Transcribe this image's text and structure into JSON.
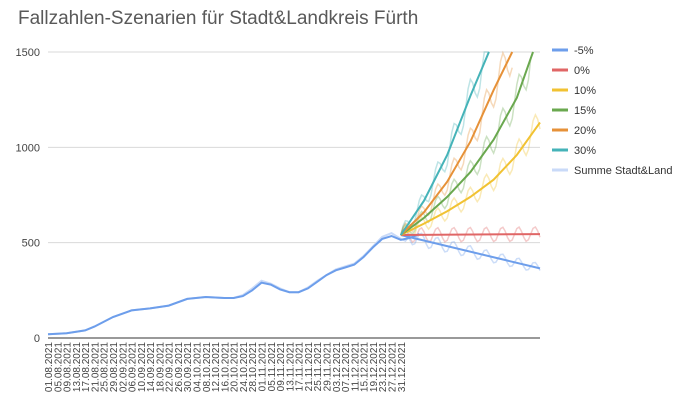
{
  "chart_data": {
    "type": "line",
    "title": "Fallzahlen-Szenarien für Stadt&Landkreis Fürth",
    "ylim": [
      0,
      1500
    ],
    "y_ticks": [
      "0",
      "500",
      "1000",
      "1500"
    ],
    "grid": true,
    "legend_position": "right",
    "x_ticks": [
      "01.08.2021",
      "05.08.2021",
      "09.08.2021",
      "13.08.2021",
      "17.08.2021",
      "21.08.2021",
      "25.08.2021",
      "29.08.2021",
      "02.09.2021",
      "06.09.2021",
      "10.09.2021",
      "14.09.2021",
      "18.09.2021",
      "22.09.2021",
      "26.09.2021",
      "30.09.2021",
      "04.10.2021",
      "08.10.2021",
      "12.10.2021",
      "16.10.2021",
      "20.10.2021",
      "24.10.2021",
      "28.10.2021",
      "01.11.2021",
      "05.11.2021",
      "09.11.2021",
      "13.11.2021",
      "17.11.2021",
      "21.11.2021",
      "25.11.2021",
      "29.11.2021",
      "03.12.2021",
      "07.12.2021",
      "11.12.2021",
      "15.12.2021",
      "19.12.2021",
      "23.12.2021",
      "27.12.2021",
      "31.12.2021"
    ],
    "history": {
      "name": "Summe Stadt&Land",
      "color": "#c9daf8",
      "day": [
        0,
        8,
        16,
        20,
        28,
        36,
        44,
        52,
        60,
        68,
        76,
        80,
        84,
        88,
        92,
        96,
        100,
        104,
        108,
        112,
        116,
        120,
        124,
        128,
        132,
        136,
        140,
        144,
        148,
        152,
        154,
        156,
        158,
        160
      ],
      "values": [
        20,
        25,
        40,
        60,
        110,
        145,
        155,
        170,
        205,
        215,
        210,
        210,
        225,
        260,
        300,
        285,
        260,
        240,
        240,
        265,
        300,
        330,
        360,
        375,
        390,
        430,
        480,
        530,
        550,
        520,
        510,
        540,
        520,
        545
      ]
    },
    "history_smooth": {
      "color": "#6d9eeb",
      "day": [
        0,
        8,
        16,
        20,
        28,
        36,
        44,
        52,
        60,
        68,
        76,
        80,
        84,
        88,
        92,
        96,
        100,
        104,
        108,
        112,
        116,
        120,
        124,
        128,
        132,
        136,
        140,
        144,
        148,
        152,
        156,
        160
      ],
      "values": [
        20,
        25,
        40,
        60,
        110,
        145,
        155,
        170,
        205,
        215,
        210,
        210,
        220,
        250,
        290,
        280,
        255,
        240,
        240,
        260,
        295,
        330,
        355,
        370,
        385,
        425,
        475,
        520,
        535,
        515,
        525,
        545
      ]
    },
    "scenario_start_day": 152,
    "scenario_end_day": 152,
    "series": [
      {
        "name": "-5%",
        "color": "#6d9eeb",
        "day": [
          152,
          212
        ],
        "values": [
          540,
          365
        ]
      },
      {
        "name": "0%",
        "color": "#e06666",
        "day": [
          152,
          212
        ],
        "values": [
          540,
          545
        ]
      },
      {
        "name": "10%",
        "color": "#f1c232",
        "day": [
          152,
          162,
          172,
          182,
          192,
          202,
          212
        ],
        "values": [
          540,
          600,
          665,
          740,
          830,
          960,
          1130
        ]
      },
      {
        "name": "15%",
        "color": "#6aa84f",
        "day": [
          152,
          162,
          172,
          182,
          192,
          202,
          209
        ],
        "values": [
          540,
          630,
          740,
          870,
          1040,
          1260,
          1500
        ]
      },
      {
        "name": "20%",
        "color": "#e69138",
        "day": [
          152,
          162,
          172,
          182,
          192,
          200
        ],
        "values": [
          540,
          660,
          820,
          1030,
          1300,
          1500
        ]
      },
      {
        "name": "30%",
        "color": "#45b3b8",
        "day": [
          152,
          162,
          172,
          182,
          190
        ],
        "values": [
          540,
          720,
          960,
          1270,
          1500
        ]
      }
    ],
    "noisy_color_alpha": 0.35
  }
}
